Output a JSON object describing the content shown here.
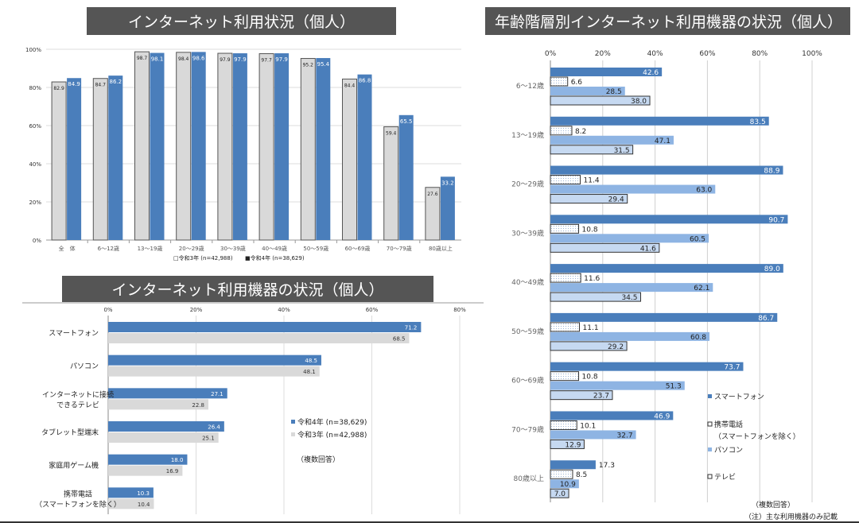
{
  "colors": {
    "title_bg": "#555555",
    "r4": "#4a7ebb",
    "r3": "#d9d9d9",
    "smartphone": "#4a7ebb",
    "mobile": "#eef3fa",
    "pc": "#8eb4e3",
    "tv": "#c6d9f1"
  },
  "titles": {
    "usage": "インターネット利用状況（個人）",
    "devices_by_age": "年齢階層別インターネット利用機器の状況（個人）",
    "devices": "インターネット利用機器の状況（個人）"
  },
  "chart_data": [
    {
      "type": "bar",
      "title": "インターネット利用状況（個人）",
      "categories": [
        "全　体",
        "6～12歳",
        "13～19歳",
        "20～29歳",
        "30～39歳",
        "40～49歳",
        "50～59歳",
        "60～69歳",
        "70～79歳",
        "80歳以上"
      ],
      "series": [
        {
          "name": "令和3年 (n=42,988)",
          "legend_marker": "□",
          "values": [
            82.9,
            84.7,
            98.7,
            98.4,
            97.9,
            97.7,
            95.2,
            84.4,
            59.4,
            27.6
          ]
        },
        {
          "name": "令和4年 (n=38,629)",
          "legend_marker": "■",
          "values": [
            84.9,
            86.2,
            98.1,
            98.6,
            97.9,
            97.9,
            95.4,
            86.8,
            65.5,
            33.2
          ]
        }
      ],
      "ylim": [
        0,
        100
      ],
      "yticks": [
        "0%",
        "20%",
        "40%",
        "60%",
        "80%",
        "100%"
      ],
      "grid": true,
      "legend": "bottom"
    },
    {
      "type": "bar",
      "orientation": "horizontal",
      "title": "インターネット利用機器の状況（個人）",
      "categories": [
        [
          "スマートフォン"
        ],
        [
          "パソコン"
        ],
        [
          "インターネットに接続",
          "できるテレビ"
        ],
        [
          "タブレット型端末"
        ],
        [
          "家庭用ゲーム機"
        ],
        [
          "携帯電話",
          "（スマートフォンを除く）"
        ]
      ],
      "series": [
        {
          "name": "令和4年 (n=38,629)",
          "legend_marker": "■",
          "values": [
            71.2,
            48.5,
            27.1,
            26.4,
            18.0,
            10.3
          ]
        },
        {
          "name": "令和3年 (n=42,988)",
          "legend_marker": "■",
          "values": [
            68.5,
            48.1,
            22.8,
            25.1,
            16.9,
            10.4
          ]
        }
      ],
      "xlim": [
        0,
        80
      ],
      "xticks": [
        "0%",
        "20%",
        "40%",
        "60%",
        "80%"
      ],
      "note": "（複数回答）",
      "grid": true,
      "legend": "right"
    },
    {
      "type": "bar",
      "orientation": "horizontal",
      "title": "年齢階層別インターネット利用機器の状況（個人）",
      "categories": [
        "6～12歳",
        "13～19歳",
        "20～29歳",
        "30～39歳",
        "40～49歳",
        "50～59歳",
        "60～69歳",
        "70～79歳",
        "80歳以上"
      ],
      "series": [
        {
          "name": "スマートフォン",
          "legend_marker": "■",
          "values": [
            42.6,
            83.5,
            88.9,
            90.7,
            89.0,
            86.7,
            73.7,
            46.9,
            17.3
          ]
        },
        {
          "name": "携帯電話（スマートフォンを除く）",
          "legend_lines": [
            "携帯電話",
            "（スマートフォンを除く）"
          ],
          "legend_marker": "□",
          "values": [
            6.6,
            8.2,
            11.4,
            10.8,
            11.6,
            11.1,
            10.8,
            10.1,
            8.5
          ]
        },
        {
          "name": "パソコン",
          "legend_marker": "■",
          "values": [
            28.5,
            47.1,
            63.0,
            60.5,
            62.1,
            60.8,
            51.3,
            32.7,
            10.9
          ]
        },
        {
          "name": "テレビ",
          "legend_marker": "□",
          "values": [
            38.0,
            31.5,
            29.4,
            41.6,
            34.5,
            29.2,
            23.7,
            12.9,
            7.0
          ]
        }
      ],
      "xlim": [
        0,
        100
      ],
      "xticks": [
        "0%",
        "20%",
        "40%",
        "60%",
        "80%",
        "100%"
      ],
      "note": "（複数回答）",
      "footnote": "（注）主な利用機器のみ記載",
      "grid": true,
      "legend": "bottom-right"
    }
  ]
}
